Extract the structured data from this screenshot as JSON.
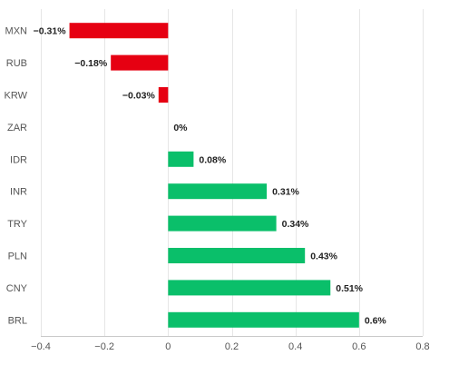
{
  "chart_data": {
    "type": "bar",
    "orientation": "horizontal",
    "categories": [
      "MXN",
      "RUB",
      "KRW",
      "ZAR",
      "IDR",
      "INR",
      "TRY",
      "PLN",
      "CNY",
      "BRL"
    ],
    "values": [
      -0.31,
      -0.18,
      -0.03,
      0,
      0.08,
      0.31,
      0.34,
      0.43,
      0.51,
      0.6
    ],
    "data_labels": [
      "−0.31%",
      "−0.18%",
      "−0.03%",
      "0%",
      "0.08%",
      "0.31%",
      "0.34%",
      "0.43%",
      "0.51%",
      "0.6%"
    ],
    "xlim": [
      -0.4,
      0.8
    ],
    "x_ticks": [
      -0.4,
      -0.2,
      0,
      0.2,
      0.4,
      0.6,
      0.8
    ],
    "x_tick_labels": [
      "−0.4",
      "−0.2",
      "0",
      "0.2",
      "0.4",
      "0.6",
      "0.8"
    ],
    "grid": true,
    "title": "",
    "xlabel": "",
    "ylabel": "",
    "colors": {
      "positive": "#0abf6a",
      "negative": "#e60012",
      "grid": "#e6e6e6",
      "axis": "#c8c8c8"
    }
  }
}
